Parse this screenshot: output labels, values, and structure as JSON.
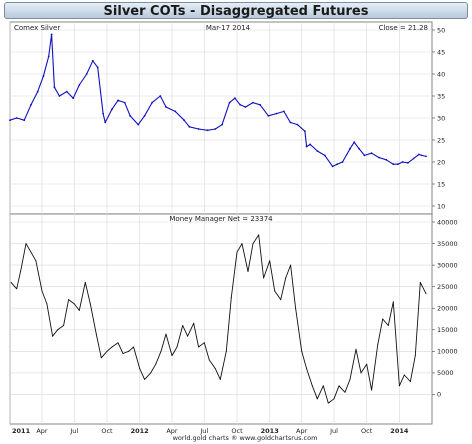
{
  "title": "Silver COTs - Disaggregated Futures",
  "footer": "world.gold charts ® www.goldchartsrus.com",
  "chart_data": [
    {
      "type": "line",
      "legend_left": "Comex Silver",
      "date_label": "Mar-17  2014",
      "close_label": "Close = 21.28",
      "ylim": [
        10,
        50
      ],
      "y_ticks": [
        "10",
        "15",
        "20",
        "25",
        "30",
        "35",
        "40",
        "45",
        "50"
      ],
      "x_ticks": [
        "2011",
        "Apr",
        "Jul",
        "Oct",
        "2012",
        "Apr",
        "Jul",
        "Oct",
        "2013",
        "Apr",
        "Jul",
        "Oct",
        "2014"
      ],
      "x_ticks_bold": [
        "2011",
        "2012",
        "2013",
        "2014"
      ],
      "x_range": [
        "2011-01-01",
        "2014-03-17"
      ],
      "series": [
        {
          "color": "#1010c0",
          "x": [
            "2011-01-01",
            "2011-01-20",
            "2011-02-10",
            "2011-03-01",
            "2011-03-20",
            "2011-04-05",
            "2011-04-20",
            "2011-04-28",
            "2011-05-06",
            "2011-05-20",
            "2011-06-10",
            "2011-06-28",
            "2011-07-15",
            "2011-08-05",
            "2011-08-22",
            "2011-09-05",
            "2011-09-20",
            "2011-09-26",
            "2011-10-15",
            "2011-11-01",
            "2011-11-20",
            "2011-12-05",
            "2011-12-28",
            "2012-01-15",
            "2012-02-05",
            "2012-02-28",
            "2012-03-15",
            "2012-04-10",
            "2012-05-05",
            "2012-05-20",
            "2012-06-15",
            "2012-07-10",
            "2012-08-01",
            "2012-08-20",
            "2012-09-10",
            "2012-09-25",
            "2012-10-10",
            "2012-10-25",
            "2012-11-15",
            "2012-12-05",
            "2012-12-28",
            "2013-01-20",
            "2013-02-10",
            "2013-02-28",
            "2013-03-20",
            "2013-04-10",
            "2013-04-15",
            "2013-04-25",
            "2013-05-15",
            "2013-06-05",
            "2013-06-27",
            "2013-07-10",
            "2013-07-25",
            "2013-08-15",
            "2013-08-27",
            "2013-09-10",
            "2013-09-25",
            "2013-10-15",
            "2013-11-05",
            "2013-11-25",
            "2013-12-15",
            "2013-12-28",
            "2014-01-10",
            "2014-01-25",
            "2014-02-10",
            "2014-02-25",
            "2014-03-05",
            "2014-03-17"
          ],
          "values": [
            29.5,
            30.0,
            29.5,
            33.0,
            36.0,
            39.5,
            44.0,
            49.0,
            37.0,
            35.0,
            36.0,
            34.5,
            37.5,
            40.0,
            43.0,
            41.5,
            31.0,
            29.0,
            32.0,
            34.0,
            33.5,
            30.5,
            28.5,
            30.5,
            33.5,
            35.0,
            32.5,
            31.5,
            29.5,
            28.0,
            27.5,
            27.2,
            27.5,
            28.5,
            33.5,
            34.5,
            33.0,
            32.5,
            33.5,
            33.0,
            30.5,
            31.0,
            31.5,
            29.0,
            28.5,
            27.0,
            23.5,
            24.0,
            22.5,
            21.5,
            19.0,
            19.5,
            20.0,
            23.0,
            24.5,
            23.0,
            21.5,
            22.0,
            21.0,
            20.5,
            19.5,
            19.5,
            20.0,
            19.8,
            20.8,
            21.7,
            21.5,
            21.28
          ]
        }
      ]
    },
    {
      "type": "line",
      "legend_center": "Money Manager Net  = 23374",
      "ylim": [
        -5000,
        40000
      ],
      "y_ticks": [
        "0",
        "5000",
        "10000",
        "15000",
        "20000",
        "25000",
        "30000",
        "35000",
        "40000"
      ],
      "x_range": [
        "2011-01-01",
        "2014-03-17"
      ],
      "series": [
        {
          "color": "#111111",
          "x": [
            "2011-01-04",
            "2011-01-20",
            "2011-02-01",
            "2011-02-15",
            "2011-03-01",
            "2011-03-15",
            "2011-04-01",
            "2011-04-15",
            "2011-05-01",
            "2011-05-15",
            "2011-06-01",
            "2011-06-15",
            "2011-07-01",
            "2011-07-15",
            "2011-08-01",
            "2011-08-15",
            "2011-09-01",
            "2011-09-15",
            "2011-10-01",
            "2011-10-15",
            "2011-11-01",
            "2011-11-15",
            "2011-12-01",
            "2011-12-15",
            "2012-01-01",
            "2012-01-15",
            "2012-02-01",
            "2012-02-15",
            "2012-03-01",
            "2012-03-15",
            "2012-04-01",
            "2012-04-15",
            "2012-05-01",
            "2012-05-15",
            "2012-06-01",
            "2012-06-15",
            "2012-07-01",
            "2012-07-15",
            "2012-08-01",
            "2012-08-15",
            "2012-09-01",
            "2012-09-15",
            "2012-10-01",
            "2012-10-15",
            "2012-11-01",
            "2012-11-15",
            "2012-12-01",
            "2012-12-15",
            "2013-01-01",
            "2013-01-15",
            "2013-02-01",
            "2013-02-15",
            "2013-03-01",
            "2013-03-15",
            "2013-04-01",
            "2013-04-15",
            "2013-05-01",
            "2013-05-15",
            "2013-06-01",
            "2013-06-15",
            "2013-07-01",
            "2013-07-15",
            "2013-08-01",
            "2013-08-15",
            "2013-09-01",
            "2013-09-15",
            "2013-10-01",
            "2013-10-15",
            "2013-11-01",
            "2013-11-15",
            "2013-12-01",
            "2013-12-15",
            "2014-01-01",
            "2014-01-15",
            "2014-02-01",
            "2014-02-15",
            "2014-03-01",
            "2014-03-17"
          ],
          "values": [
            26000,
            24500,
            29000,
            35000,
            33000,
            31000,
            24000,
            21000,
            13500,
            15000,
            16000,
            22000,
            21000,
            19500,
            26000,
            21000,
            14000,
            8500,
            10000,
            11000,
            12000,
            9500,
            10000,
            11000,
            6000,
            3500,
            5000,
            7000,
            10000,
            14000,
            9000,
            11000,
            16000,
            13500,
            16500,
            11000,
            12000,
            8000,
            6000,
            3500,
            10000,
            22500,
            33000,
            35000,
            28500,
            35000,
            37000,
            27000,
            31000,
            24000,
            22000,
            27000,
            30000,
            20000,
            10000,
            6000,
            2000,
            -1000,
            2000,
            -2000,
            -1000,
            2000,
            500,
            3500,
            10500,
            5000,
            7000,
            1000,
            11500,
            17500,
            16000,
            21500,
            2000,
            4500,
            3000,
            9000,
            26000,
            23374
          ]
        }
      ]
    }
  ]
}
